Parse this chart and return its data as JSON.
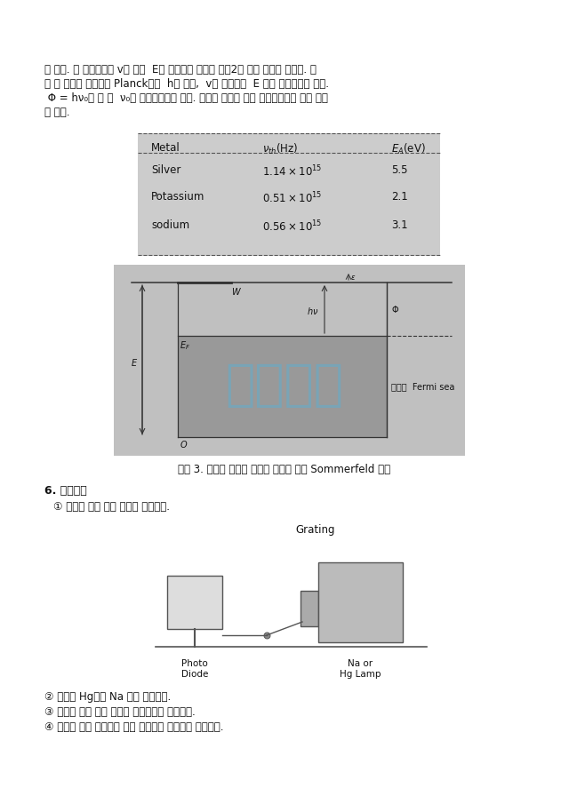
{
  "bg_color": "#ffffff",
  "text_color": "#222222",
  "para1_lines": [
    "기 켠다. 이 식으로부터 v에 대한  E의 그래프를 그리면 그림2와 같은 모양을 얻는다. 이",
    "때 이 직선의 기울기가 Planck상수  h가 되며,  v가 영이되는  E 값이 일함수값이 된다.",
    " Φ = hν₀라 한 때  ν₀를 문턱진동수라 한다. 몇가지 금속에 대한 문턱진동수의 값은 다음",
    "과 같다."
  ],
  "table_header": [
    "Metal",
    "nu_th(Hz)",
    "E_A(eV)"
  ],
  "table_rows": [
    [
      "Silver",
      "1.14",
      "5.5"
    ],
    [
      "Potassium",
      "0.51",
      "2.1"
    ],
    [
      "sodium",
      "0.56",
      "3.1"
    ]
  ],
  "table_bg": "#cccccc",
  "figure3_caption": "그림 3. 금속내 전자의 에너지 분포에 대한 Sommerfeld 모델",
  "section6_title": "6. 실험방법",
  "section6_item1": "① 아래와 같이 실험 장치를 배치한다.",
  "grating_label": "Grating",
  "photodiode_label": "Photo\nDiode",
  "lamp_label": "Na or\nHg Lamp",
  "bottom_items": [
    "② 광원은 Hg또는 Na 등을 사용한다.",
    "③ 균형된 빛의 색에 따라서 정전전압을 측정한다.",
    "④ 균형된 빛의 진동수에 따른 정전전압 그래프를 나타낸다."
  ],
  "watermark_text": "미리보기",
  "watermark_color": "#4eb5e0",
  "watermark_alpha": 0.42,
  "fig3_bg": "#c0c0c0",
  "diagram_bg": "#d8d8d8"
}
